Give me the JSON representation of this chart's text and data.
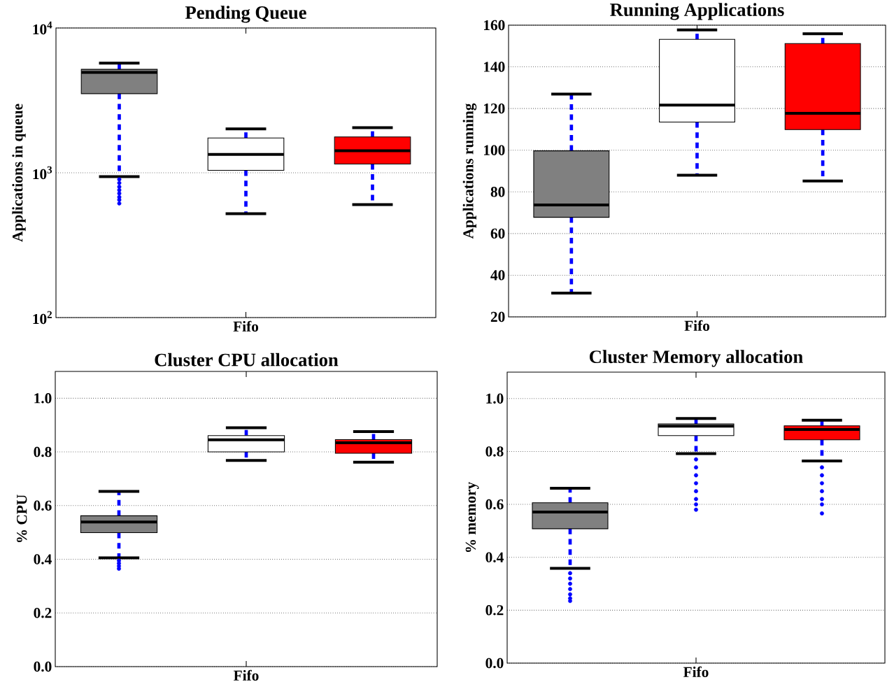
{
  "chart_data": [
    {
      "type": "box",
      "title": "Pending Queue",
      "ylabel": "Applications in queue",
      "categories": [
        null,
        "Fifo",
        null
      ],
      "colors": [
        "#808080",
        "#ffffff",
        "#ff0000"
      ],
      "log": true,
      "grid": "y",
      "ylim": [
        100,
        10000
      ],
      "yticks": [
        {
          "value": 100,
          "label": "10$^{2}$"
        },
        {
          "value": 1000,
          "label": "10$^{3}$"
        },
        {
          "value": 10000,
          "label": "10$^{4}$"
        }
      ],
      "boxes": [
        {
          "low": 940,
          "q1": 3520,
          "median": 4930,
          "q3": 5180,
          "high": 5710,
          "outliers": [
            900,
            850,
            800,
            760,
            720,
            680,
            650,
            614
          ]
        },
        {
          "low": 522,
          "q1": 1040,
          "median": 1340,
          "q3": 1740,
          "high": 2010
        },
        {
          "low": 603,
          "q1": 1150,
          "median": 1420,
          "q3": 1770,
          "high": 2050
        }
      ]
    },
    {
      "type": "box",
      "title": "Running Applications",
      "ylabel": "Applications running",
      "categories": [
        null,
        "Fifo",
        null
      ],
      "colors": [
        "#808080",
        "#ffffff",
        "#ff0000"
      ],
      "grid": "y",
      "ylim": [
        20,
        160
      ],
      "yticks": [
        20,
        40,
        60,
        80,
        100,
        120,
        140,
        160
      ],
      "boxes": [
        {
          "low": 31.4,
          "q1": 67.8,
          "median": 73.7,
          "q3": 99.7,
          "high": 126.9
        },
        {
          "low": 88.0,
          "q1": 113.5,
          "median": 121.6,
          "q3": 153.2,
          "high": 157.7
        },
        {
          "low": 85.2,
          "q1": 109.9,
          "median": 117.7,
          "q3": 151.2,
          "high": 155.9
        }
      ]
    },
    {
      "type": "box",
      "title": "Cluster CPU allocation",
      "ylabel": "% CPU",
      "categories": [
        null,
        "Fifo",
        null
      ],
      "colors": [
        "#808080",
        "#ffffff",
        "#ff0000"
      ],
      "grid": "y",
      "ylim": [
        0,
        1.1
      ],
      "yticks": [
        {
          "value": 0,
          "label": "0.0"
        },
        0.2,
        0.4,
        0.6,
        0.8,
        {
          "value": 1,
          "label": "1.0"
        }
      ],
      "boxes": [
        {
          "low": 0.405,
          "q1": 0.499,
          "median": 0.539,
          "q3": 0.562,
          "high": 0.653,
          "outliers": [
            0.395,
            0.385,
            0.375,
            0.365
          ]
        },
        {
          "low": 0.768,
          "q1": 0.8,
          "median": 0.845,
          "q3": 0.861,
          "high": 0.89
        },
        {
          "low": 0.762,
          "q1": 0.795,
          "median": 0.834,
          "q3": 0.846,
          "high": 0.876
        }
      ]
    },
    {
      "type": "box",
      "title": "Cluster Memory allocation",
      "ylabel": "% memory",
      "categories": [
        null,
        "Fifo",
        null
      ],
      "colors": [
        "#808080",
        "#ffffff",
        "#ff0000"
      ],
      "grid": "y",
      "ylim": [
        0,
        1.1
      ],
      "yticks": [
        {
          "value": 0,
          "label": "0.0"
        },
        0.2,
        0.4,
        0.6,
        0.8,
        {
          "value": 1,
          "label": "1.0"
        }
      ],
      "boxes": [
        {
          "low": 0.358,
          "q1": 0.508,
          "median": 0.571,
          "q3": 0.606,
          "high": 0.661,
          "outliers": [
            0.34,
            0.32,
            0.3,
            0.28,
            0.26,
            0.245,
            0.235
          ]
        },
        {
          "low": 0.792,
          "q1": 0.86,
          "median": 0.896,
          "q3": 0.904,
          "high": 0.925,
          "outliers": [
            0.77,
            0.74,
            0.71,
            0.68,
            0.65,
            0.62,
            0.6,
            0.58
          ]
        },
        {
          "low": 0.764,
          "q1": 0.844,
          "median": 0.883,
          "q3": 0.897,
          "high": 0.918,
          "outliers": [
            0.74,
            0.71,
            0.68,
            0.65,
            0.62,
            0.6,
            0.566
          ]
        }
      ]
    }
  ]
}
